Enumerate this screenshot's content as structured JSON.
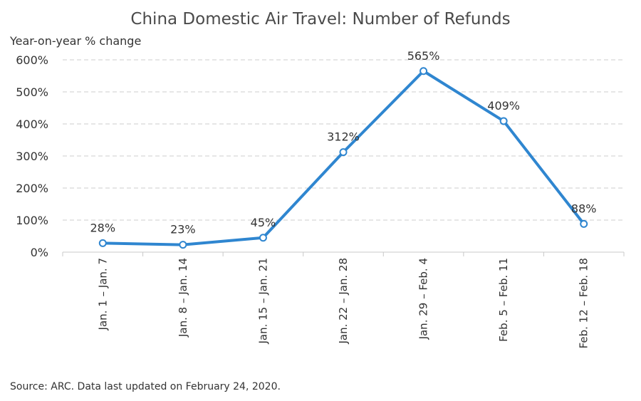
{
  "chart_data": {
    "type": "line",
    "title": "China Domestic Air Travel: Number of Refunds",
    "ylabel": "Year-on-year % change",
    "xlabel": "",
    "categories": [
      "Jan. 1 – Jan. 7",
      "Jan. 8 – Jan. 14",
      "Jan. 15 – Jan. 21",
      "Jan. 22 – Jan. 28",
      "Jan. 29 – Feb. 4",
      "Feb. 5 – Feb. 11",
      "Feb. 12 – Feb. 18"
    ],
    "series": [
      {
        "values": [
          28,
          23,
          45,
          312,
          565,
          409,
          88
        ],
        "data_labels": [
          "28%",
          "23%",
          "45%",
          "312%",
          "565%",
          "409%",
          "88%"
        ],
        "color": "#2f86d0"
      }
    ],
    "ylim": [
      0,
      600
    ],
    "yticks": [
      0,
      100,
      200,
      300,
      400,
      500,
      600
    ],
    "ytick_labels": [
      "0%",
      "100%",
      "200%",
      "300%",
      "400%",
      "500%",
      "600%"
    ],
    "grid": true,
    "gridline_color": "#cccccc",
    "legend": "none"
  },
  "source": "Source: ARC. Data last updated on February 24, 2020."
}
